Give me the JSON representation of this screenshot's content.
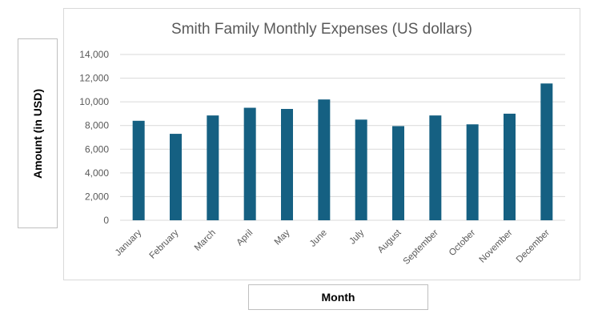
{
  "chart_data": {
    "type": "bar",
    "title": "Smith Family Monthly Expenses (US dollars)",
    "xlabel": "Month",
    "ylabel": "Amount (in USD)",
    "categories": [
      "January",
      "February",
      "March",
      "April",
      "May",
      "June",
      "July",
      "August",
      "September",
      "October",
      "November",
      "December"
    ],
    "values": [
      8400,
      7300,
      8850,
      9500,
      9400,
      10200,
      8500,
      7950,
      8850,
      8100,
      9000,
      11550
    ],
    "ylim": [
      0,
      14000
    ],
    "yticks": [
      0,
      2000,
      4000,
      6000,
      8000,
      10000,
      12000,
      14000
    ],
    "ytick_labels": [
      "0",
      "2,000",
      "4,000",
      "6,000",
      "8,000",
      "10,000",
      "12,000",
      "14,000"
    ],
    "grid": true,
    "bar_color": "#156082"
  }
}
